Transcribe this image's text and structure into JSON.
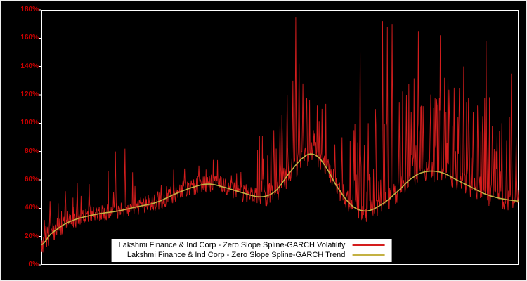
{
  "chart_data": {
    "type": "line",
    "title": "",
    "xlim": [
      0,
      1
    ],
    "ylim": [
      0,
      180
    ],
    "grid": false,
    "legend_position": "bottom-center",
    "background_color": "#000000",
    "frame_color": "#ffffff",
    "tick_label_color": "#cc0000",
    "y_ticks": [
      {
        "value": 0,
        "label": "0%"
      },
      {
        "value": 20,
        "label": "20%"
      },
      {
        "value": 40,
        "label": "40%"
      },
      {
        "value": 60,
        "label": "60%"
      },
      {
        "value": 80,
        "label": "80%"
      },
      {
        "value": 100,
        "label": "100%"
      },
      {
        "value": 120,
        "label": "120%"
      },
      {
        "value": 140,
        "label": "140%"
      },
      {
        "value": 160,
        "label": "160%"
      },
      {
        "value": 180,
        "label": "180%"
      }
    ],
    "series": [
      {
        "name": "Lakshmi Finance & Ind Corp - Zero Slope Spline-GARCH Volatility",
        "color": "#d41d1d",
        "style": "noisy-line"
      },
      {
        "name": "Lakshmi Finance & Ind Corp - Zero Slope Spline-GARCH Trend",
        "color": "#c3b143",
        "style": "smooth-line"
      }
    ],
    "trend_points": [
      [
        0.0,
        14
      ],
      [
        0.02,
        22
      ],
      [
        0.05,
        29
      ],
      [
        0.08,
        33
      ],
      [
        0.12,
        36
      ],
      [
        0.16,
        38
      ],
      [
        0.2,
        41
      ],
      [
        0.24,
        44
      ],
      [
        0.28,
        50
      ],
      [
        0.32,
        55
      ],
      [
        0.35,
        57
      ],
      [
        0.38,
        55
      ],
      [
        0.42,
        51
      ],
      [
        0.46,
        48
      ],
      [
        0.49,
        52
      ],
      [
        0.52,
        65
      ],
      [
        0.55,
        76
      ],
      [
        0.57,
        78
      ],
      [
        0.59,
        72
      ],
      [
        0.62,
        55
      ],
      [
        0.65,
        42
      ],
      [
        0.68,
        38
      ],
      [
        0.71,
        42
      ],
      [
        0.74,
        50
      ],
      [
        0.78,
        62
      ],
      [
        0.81,
        66
      ],
      [
        0.84,
        65
      ],
      [
        0.87,
        60
      ],
      [
        0.9,
        55
      ],
      [
        0.93,
        50
      ],
      [
        0.96,
        47
      ],
      [
        1.0,
        45
      ]
    ],
    "volatility": {
      "seed": 20240613,
      "sample_count": 1000,
      "noise_regions": [
        {
          "from": 0.0,
          "to": 0.05,
          "jitter": 14,
          "spike_prob": 0.15,
          "spike_max": 18
        },
        {
          "from": 0.05,
          "to": 0.13,
          "jitter": 12,
          "spike_prob": 0.12,
          "spike_max": 25
        },
        {
          "from": 0.13,
          "to": 0.2,
          "jitter": 12,
          "spike_prob": 0.1,
          "spike_max": 30
        },
        {
          "from": 0.2,
          "to": 0.45,
          "jitter": 13,
          "spike_prob": 0.08,
          "spike_max": 18
        },
        {
          "from": 0.45,
          "to": 0.6,
          "jitter": 18,
          "spike_prob": 0.15,
          "spike_max": 55
        },
        {
          "from": 0.6,
          "to": 0.7,
          "jitter": 16,
          "spike_prob": 0.18,
          "spike_max": 60
        },
        {
          "from": 0.7,
          "to": 1.01,
          "jitter": 16,
          "spike_prob": 0.22,
          "spike_max": 75
        }
      ],
      "major_spikes": [
        [
          0.018,
          45
        ],
        [
          0.05,
          52
        ],
        [
          0.075,
          58
        ],
        [
          0.1,
          57
        ],
        [
          0.155,
          80
        ],
        [
          0.175,
          82
        ],
        [
          0.3,
          68
        ],
        [
          0.33,
          70
        ],
        [
          0.465,
          75
        ],
        [
          0.487,
          95
        ],
        [
          0.5,
          100
        ],
        [
          0.515,
          120
        ],
        [
          0.527,
          130
        ],
        [
          0.533,
          175
        ],
        [
          0.54,
          142
        ],
        [
          0.548,
          128
        ],
        [
          0.556,
          118
        ],
        [
          0.57,
          95
        ],
        [
          0.615,
          85
        ],
        [
          0.63,
          90
        ],
        [
          0.655,
          95
        ],
        [
          0.668,
          150
        ],
        [
          0.685,
          100
        ],
        [
          0.7,
          110
        ],
        [
          0.715,
          172
        ],
        [
          0.725,
          168
        ],
        [
          0.735,
          170
        ],
        [
          0.75,
          115
        ],
        [
          0.765,
          120
        ],
        [
          0.775,
          108
        ],
        [
          0.79,
          165
        ],
        [
          0.8,
          112
        ],
        [
          0.815,
          100
        ],
        [
          0.825,
          118
        ],
        [
          0.836,
          162
        ],
        [
          0.845,
          132
        ],
        [
          0.855,
          108
        ],
        [
          0.865,
          125
        ],
        [
          0.875,
          102
        ],
        [
          0.885,
          140
        ],
        [
          0.895,
          118
        ],
        [
          0.905,
          108
        ],
        [
          0.915,
          95
        ],
        [
          0.925,
          105
        ],
        [
          0.932,
          158
        ],
        [
          0.945,
          98
        ],
        [
          0.955,
          92
        ],
        [
          0.965,
          100
        ],
        [
          0.975,
          88
        ],
        [
          0.985,
          135
        ],
        [
          0.995,
          90
        ]
      ]
    }
  }
}
